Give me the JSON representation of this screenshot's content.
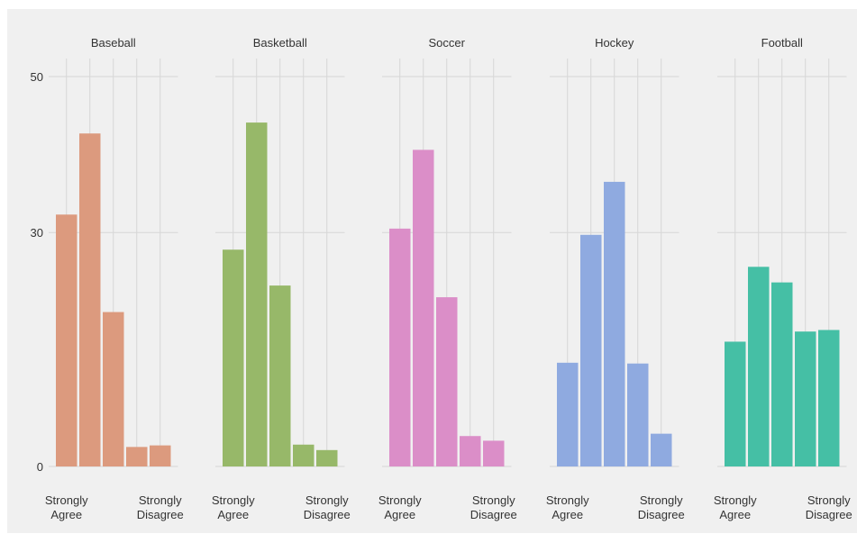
{
  "chart_data": {
    "type": "bar",
    "ylim": [
      0,
      50
    ],
    "yticks": [
      0,
      30,
      50
    ],
    "grid": true,
    "x_tick_labels": [
      "Strongly Agree",
      "Strongly Disagree"
    ],
    "panels": [
      {
        "title": "Baseball",
        "values": [
          32.3,
          42.7,
          19.8,
          2.5,
          2.7
        ],
        "color": "#dc9a7e"
      },
      {
        "title": "Basketball",
        "values": [
          27.8,
          44.1,
          23.2,
          2.8,
          2.1
        ],
        "color": "#97b869"
      },
      {
        "title": "Soccer",
        "values": [
          30.5,
          40.6,
          21.7,
          3.9,
          3.3
        ],
        "color": "#db8ec8"
      },
      {
        "title": "Hockey",
        "values": [
          13.3,
          29.7,
          36.5,
          13.2,
          4.2
        ],
        "color": "#8faae0"
      },
      {
        "title": "Football",
        "values": [
          16.0,
          25.6,
          23.6,
          17.3,
          17.5
        ],
        "color": "#45bfa5"
      }
    ]
  }
}
